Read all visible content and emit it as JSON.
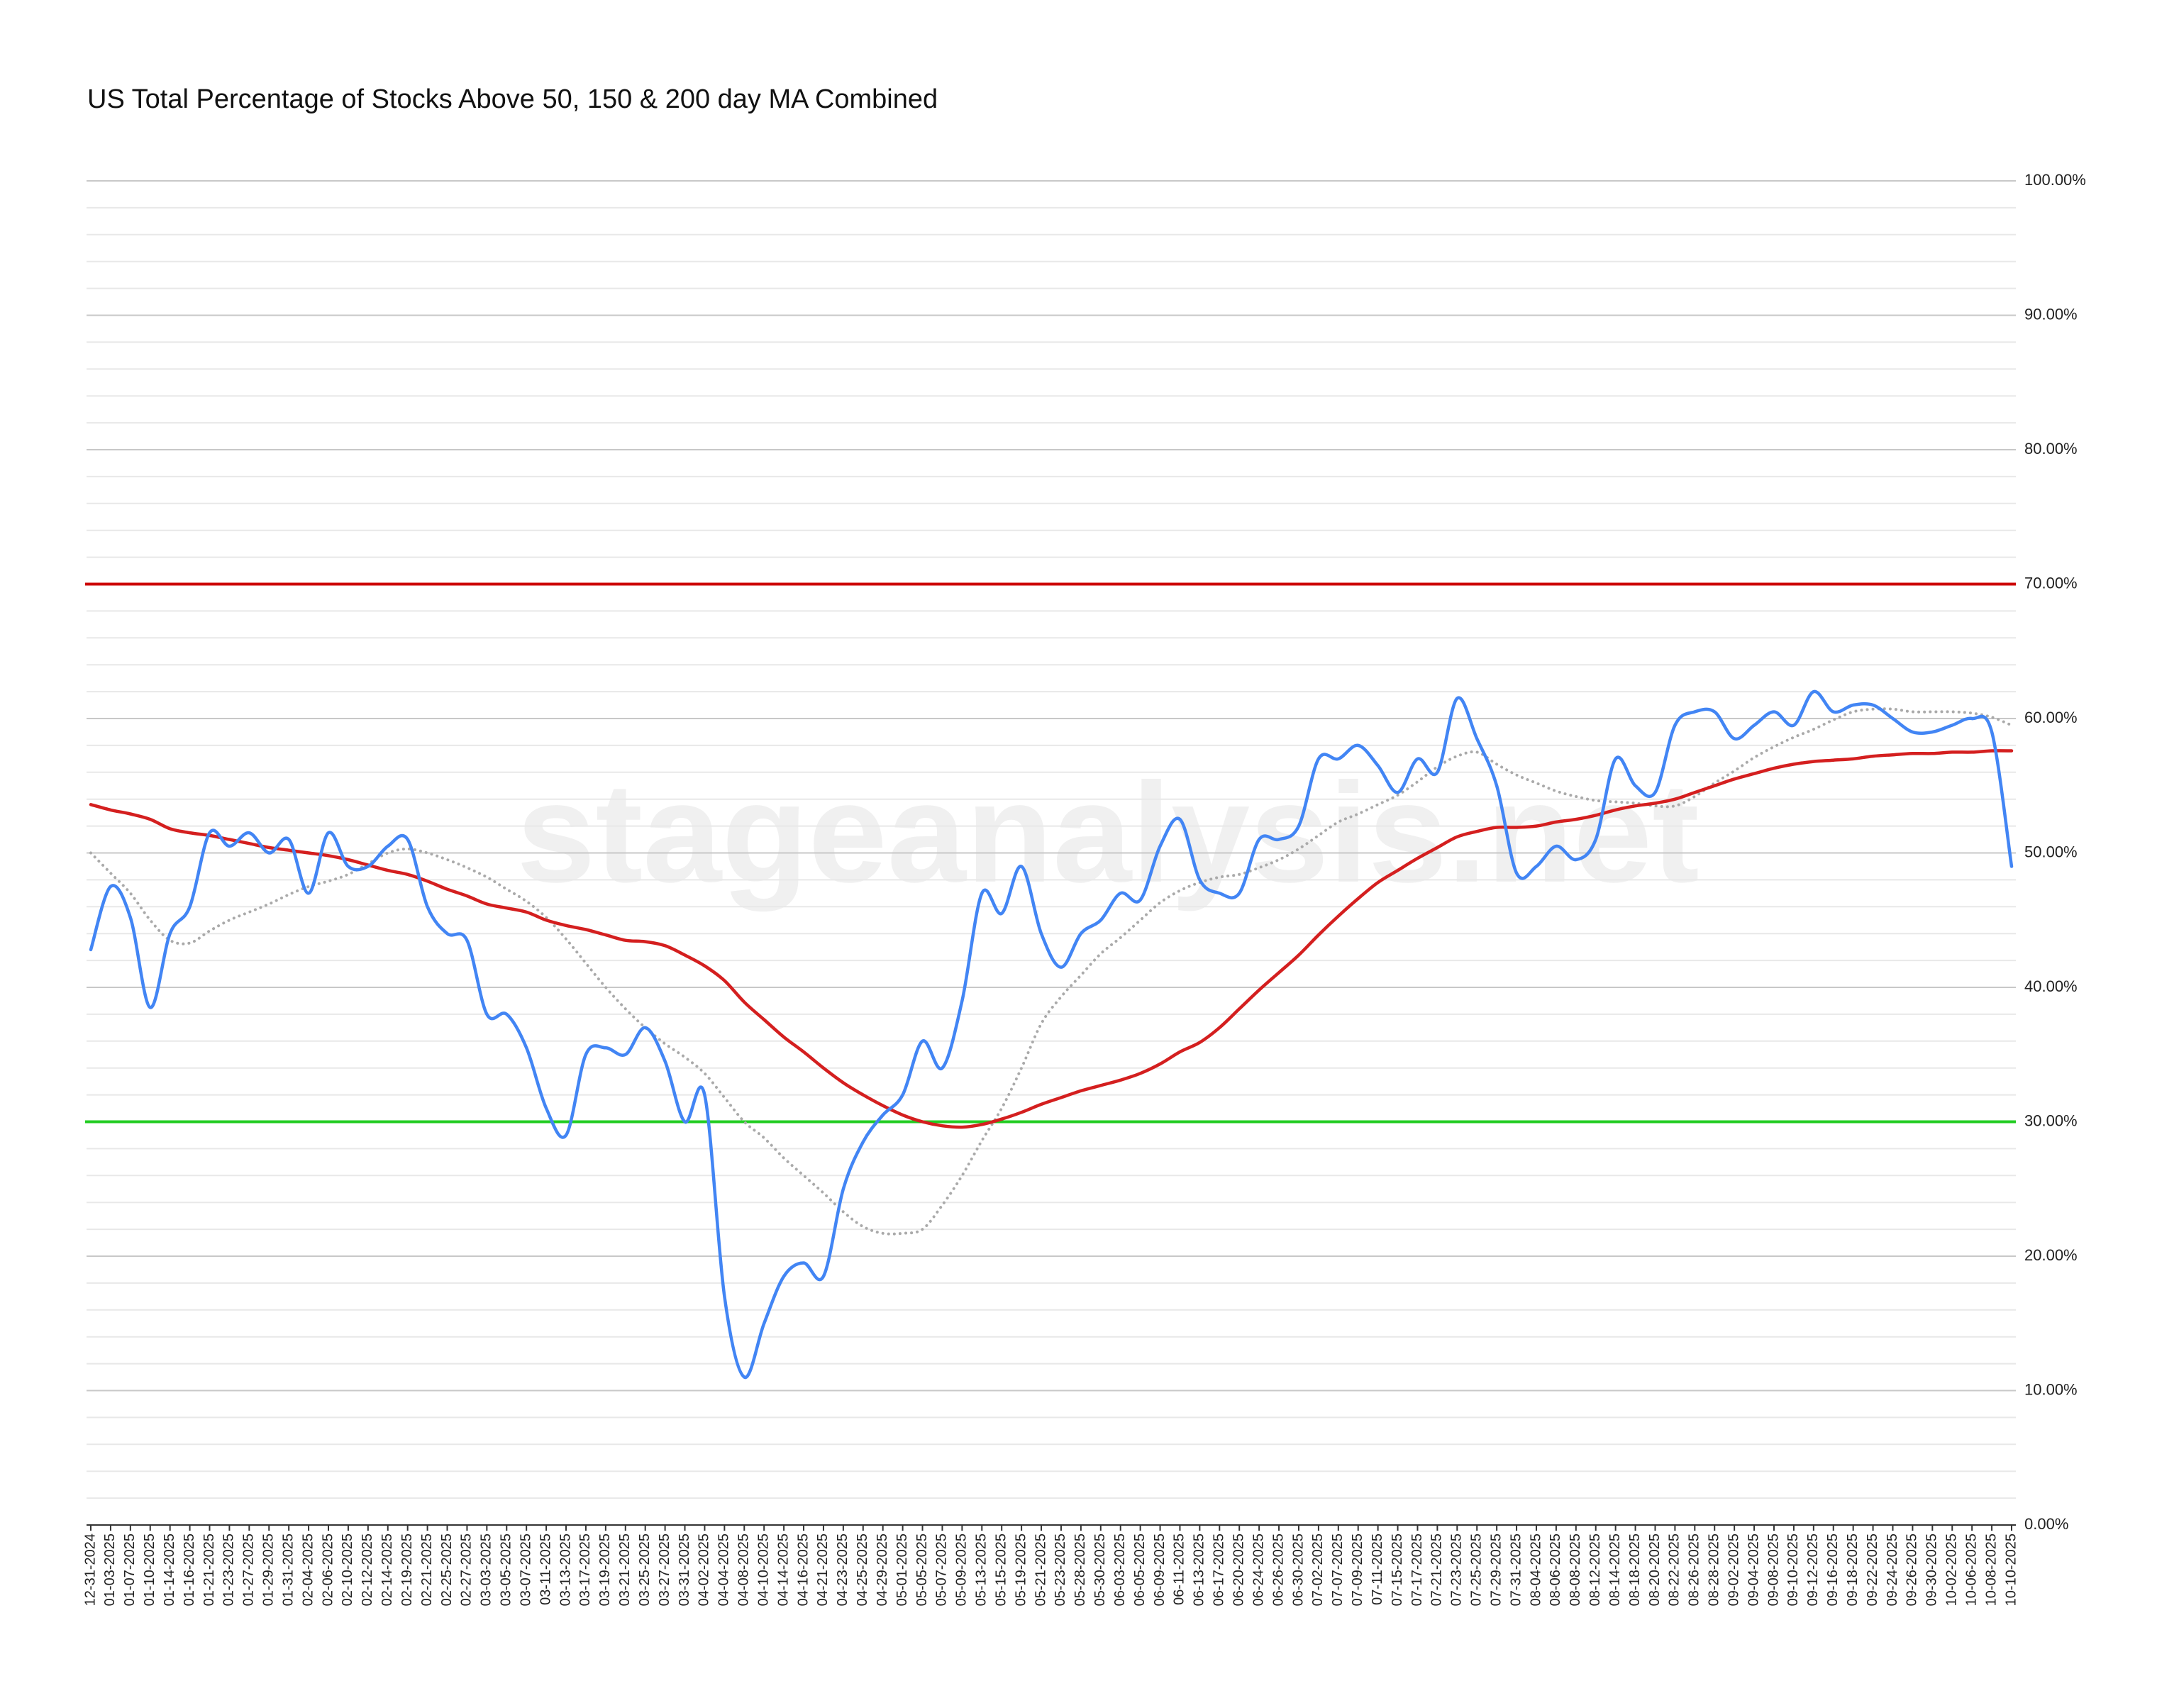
{
  "chart_data": {
    "type": "line",
    "title": "US Total Percentage of Stocks Above 50, 150 & 200 day MA Combined",
    "watermark": "stageanalysis.net",
    "categories": [
      "12-31-2024",
      "01-03-2025",
      "01-07-2025",
      "01-10-2025",
      "01-14-2025",
      "01-16-2025",
      "01-21-2025",
      "01-23-2025",
      "01-27-2025",
      "01-29-2025",
      "01-31-2025",
      "02-04-2025",
      "02-06-2025",
      "02-10-2025",
      "02-12-2025",
      "02-14-2025",
      "02-19-2025",
      "02-21-2025",
      "02-25-2025",
      "02-27-2025",
      "03-03-2025",
      "03-05-2025",
      "03-07-2025",
      "03-11-2025",
      "03-13-2025",
      "03-17-2025",
      "03-19-2025",
      "03-21-2025",
      "03-25-2025",
      "03-27-2025",
      "03-31-2025",
      "04-02-2025",
      "04-04-2025",
      "04-08-2025",
      "04-10-2025",
      "04-14-2025",
      "04-16-2025",
      "04-21-2025",
      "04-23-2025",
      "04-25-2025",
      "04-29-2025",
      "05-01-2025",
      "05-05-2025",
      "05-07-2025",
      "05-09-2025",
      "05-13-2025",
      "05-15-2025",
      "05-19-2025",
      "05-21-2025",
      "05-23-2025",
      "05-28-2025",
      "05-30-2025",
      "06-03-2025",
      "06-05-2025",
      "06-09-2025",
      "06-11-2025",
      "06-13-2025",
      "06-17-2025",
      "06-20-2025",
      "06-24-2025",
      "06-26-2025",
      "06-30-2025",
      "07-02-2025",
      "07-07-2025",
      "07-09-2025",
      "07-11-2025",
      "07-15-2025",
      "07-17-2025",
      "07-21-2025",
      "07-23-2025",
      "07-25-2025",
      "07-29-2025",
      "07-31-2025",
      "08-04-2025",
      "08-06-2025",
      "08-08-2025",
      "08-12-2025",
      "08-14-2025",
      "08-18-2025",
      "08-20-2025",
      "08-22-2025",
      "08-26-2025",
      "08-28-2025",
      "09-02-2025",
      "09-04-2025",
      "09-08-2025",
      "09-10-2025",
      "09-12-2025",
      "09-16-2025",
      "09-18-2025",
      "09-22-2025",
      "09-24-2025",
      "09-26-2025",
      "09-30-2025",
      "10-02-2025",
      "10-06-2025",
      "10-08-2025",
      "10-10-2025"
    ],
    "series": [
      {
        "color": "#aaaaaa",
        "style": "dotted",
        "values": [
          50,
          48.5,
          47,
          45,
          43.5,
          43.3,
          44.2,
          45,
          45.6,
          46.2,
          46.9,
          47.5,
          47.9,
          48.4,
          49.2,
          50,
          50.3,
          50,
          49.5,
          48.9,
          48.2,
          47.3,
          46.4,
          45.2,
          43.6,
          41.8,
          40,
          38.4,
          37,
          35.8,
          34.8,
          33.6,
          31.8,
          30,
          28.8,
          27.3,
          26,
          24.7,
          23.3,
          22.2,
          21.7,
          21.7,
          22,
          23.8,
          26,
          28.6,
          31,
          34,
          37.3,
          39.3,
          40.9,
          42.5,
          43.7,
          45,
          46.3,
          47.2,
          47.8,
          48.2,
          48.4,
          48.9,
          49.5,
          50.3,
          51.3,
          52.3,
          52.9,
          53.6,
          54.3,
          55.3,
          56.4,
          57.2,
          57.5,
          56.6,
          55.8,
          55.2,
          54.6,
          54.2,
          53.9,
          53.8,
          53.7,
          53.5,
          53.5,
          54.2,
          55.2,
          56.1,
          57.1,
          57.9,
          58.6,
          59.2,
          59.9,
          60.5,
          60.7,
          60.7,
          60.5,
          60.5,
          60.5,
          60.4,
          60.1,
          59.5
        ]
      },
      {
        "color": "#d41f1f",
        "style": "solid",
        "values": [
          53.6,
          53.2,
          52.9,
          52.5,
          51.8,
          51.5,
          51.3,
          51,
          50.7,
          50.4,
          50.2,
          50,
          49.8,
          49.5,
          49.1,
          48.7,
          48.4,
          47.9,
          47.3,
          46.8,
          46.2,
          45.9,
          45.6,
          45,
          44.6,
          44.3,
          43.9,
          43.5,
          43.4,
          43.1,
          42.4,
          41.6,
          40.5,
          38.9,
          37.6,
          36.3,
          35.2,
          34,
          32.9,
          32,
          31.2,
          30.5,
          30,
          29.7,
          29.6,
          29.8,
          30.2,
          30.7,
          31.3,
          31.8,
          32.3,
          32.7,
          33.1,
          33.6,
          34.3,
          35.2,
          35.9,
          37,
          38.4,
          39.8,
          41.1,
          42.4,
          43.9,
          45.3,
          46.6,
          47.8,
          48.7,
          49.6,
          50.4,
          51.2,
          51.6,
          51.9,
          51.9,
          52,
          52.3,
          52.5,
          52.8,
          53.2,
          53.5,
          53.7,
          54,
          54.5,
          55,
          55.5,
          55.9,
          56.3,
          56.6,
          56.8,
          56.9,
          57,
          57.2,
          57.3,
          57.4,
          57.4,
          57.5,
          57.5,
          57.6,
          57.6
        ]
      },
      {
        "color": "#4285f4",
        "style": "solid",
        "values": [
          42.8,
          47.5,
          45.2,
          38.5,
          44,
          46,
          51.5,
          50.5,
          51.5,
          50,
          51,
          47,
          51.5,
          49,
          49,
          50.5,
          51,
          46,
          44,
          43.5,
          38,
          38,
          35.5,
          31,
          29,
          35,
          35.5,
          35,
          37,
          34.5,
          30,
          32,
          17,
          11,
          15,
          18.5,
          19.5,
          18.5,
          25,
          28.5,
          30.5,
          32,
          36,
          34,
          39,
          47,
          45.5,
          49,
          44,
          41.5,
          44,
          45,
          47,
          46.5,
          50.5,
          52.5,
          48,
          47,
          47,
          51,
          51,
          52,
          57,
          57,
          58,
          56.5,
          54.5,
          57,
          56,
          61.5,
          58.5,
          55,
          48.5,
          49,
          50.5,
          49.5,
          51,
          57,
          55,
          54.5,
          59.5,
          60.5,
          60.5,
          58.5,
          59.5,
          60.5,
          59.5,
          62,
          60.5,
          61,
          61,
          60,
          59,
          59,
          59.5,
          60,
          59,
          49
        ]
      }
    ],
    "reference_lines": [
      {
        "value": 70,
        "color": "#cc0000"
      },
      {
        "value": 30,
        "color": "#22cc22"
      }
    ],
    "ylim": [
      0,
      100
    ],
    "yticks": [
      {
        "value": 0,
        "label": "0.00%"
      },
      {
        "value": 10,
        "label": "10.00%"
      },
      {
        "value": 20,
        "label": "20.00%"
      },
      {
        "value": 30,
        "label": "30.00%"
      },
      {
        "value": 40,
        "label": "40.00%"
      },
      {
        "value": 50,
        "label": "50.00%"
      },
      {
        "value": 60,
        "label": "60.00%"
      },
      {
        "value": 70,
        "label": "70.00%"
      },
      {
        "value": 80,
        "label": "80.00%"
      },
      {
        "value": 90,
        "label": "90.00%"
      },
      {
        "value": 100,
        "label": "100.00%"
      }
    ],
    "minor_yticks": [
      2,
      4,
      6,
      8,
      12,
      14,
      16,
      18,
      22,
      24,
      26,
      28,
      32,
      34,
      36,
      38,
      42,
      44,
      46,
      48,
      52,
      54,
      56,
      58,
      62,
      64,
      66,
      68,
      72,
      74,
      76,
      78,
      82,
      84,
      86,
      88,
      92,
      94,
      96,
      98
    ],
    "grid": true
  }
}
